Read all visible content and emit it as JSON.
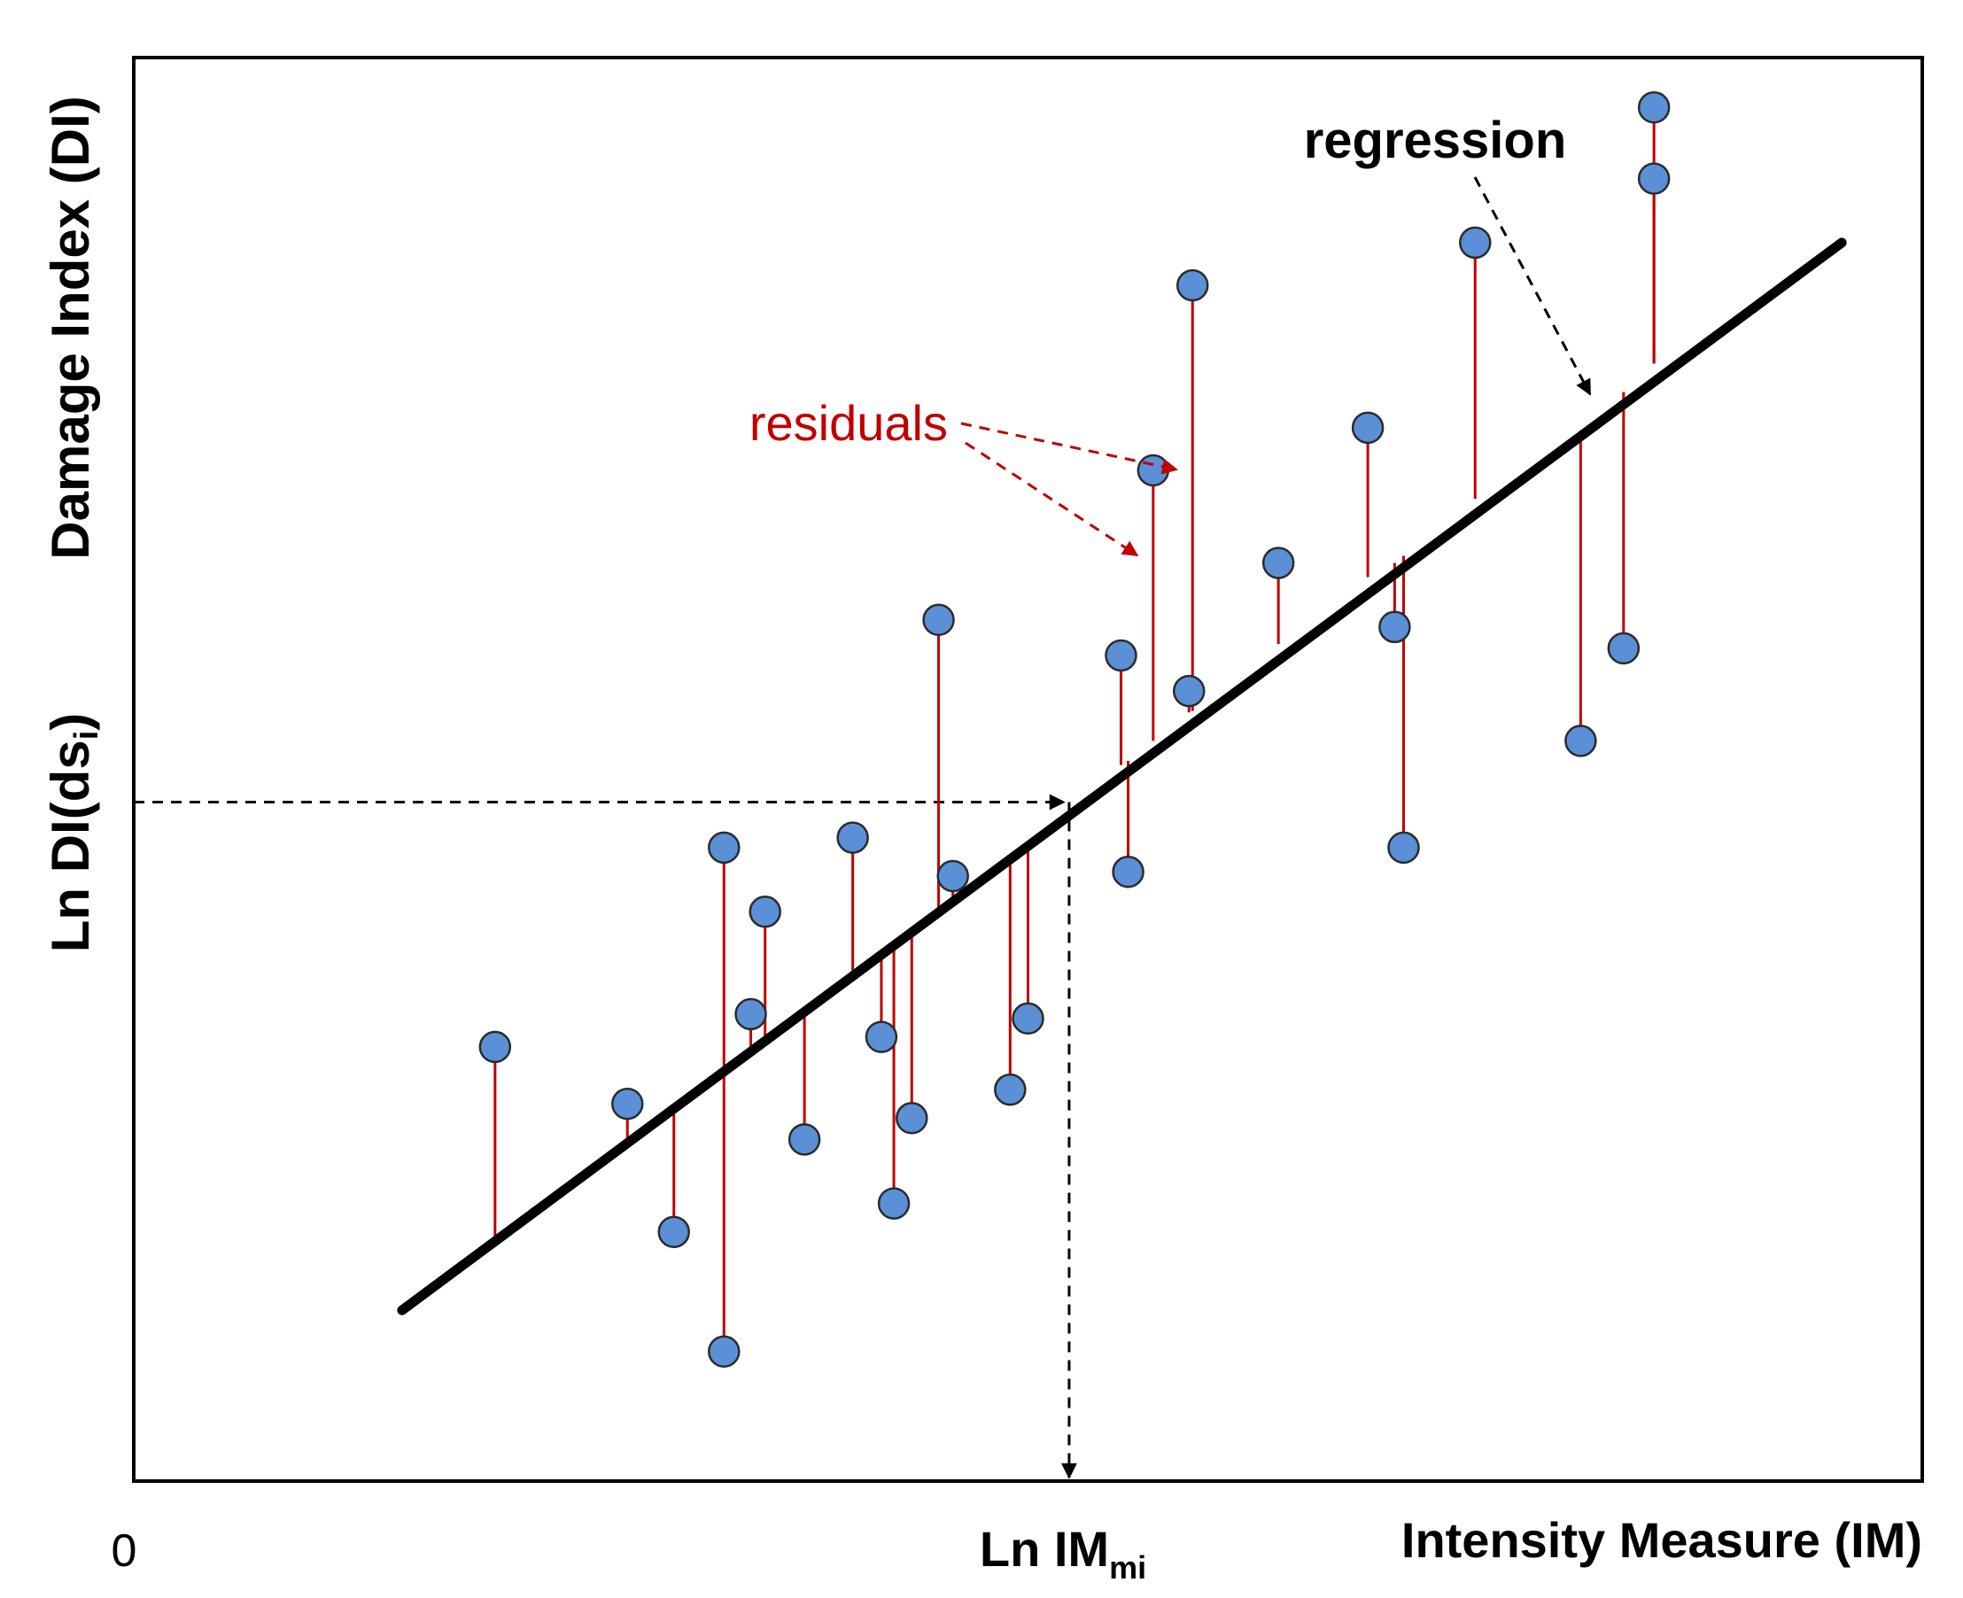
{
  "chart_data": {
    "type": "scatter",
    "title": "",
    "xlabel": "Intensity Measure (IM)",
    "ylabel": "Damage Index (DI)",
    "x_origin_label": "0",
    "y_marker_label": {
      "main": "Ln DI(ds",
      "sub": "i",
      "close": ")"
    },
    "x_marker_label": {
      "main": "Ln IM",
      "sub": "mi"
    },
    "xlim": [
      0,
      100
    ],
    "ylim": [
      0,
      100
    ],
    "grid": false,
    "legend": "none",
    "regression": {
      "x": [
        15,
        95.5
      ],
      "y": [
        12,
        87
      ]
    },
    "marker_point": {
      "x": 52.3,
      "y": 47.7
    },
    "points": [
      {
        "x": 20.2,
        "y": 30.5,
        "fit": 17.0
      },
      {
        "x": 27.6,
        "y": 26.5,
        "fit": 23.7
      },
      {
        "x": 30.2,
        "y": 17.5,
        "fit": 26.2
      },
      {
        "x": 33.0,
        "y": 44.5,
        "fit": 28.7
      },
      {
        "x": 33.0,
        "y": 9.1,
        "fit": 28.7
      },
      {
        "x": 34.5,
        "y": 32.8,
        "fit": 30.1
      },
      {
        "x": 35.3,
        "y": 40.0,
        "fit": 30.8
      },
      {
        "x": 37.5,
        "y": 24.0,
        "fit": 33.0
      },
      {
        "x": 40.2,
        "y": 45.2,
        "fit": 35.3
      },
      {
        "x": 41.8,
        "y": 31.2,
        "fit": 37.0
      },
      {
        "x": 42.5,
        "y": 19.5,
        "fit": 37.5
      },
      {
        "x": 43.5,
        "y": 25.5,
        "fit": 38.5
      },
      {
        "x": 45.0,
        "y": 60.5,
        "fit": 40.0
      },
      {
        "x": 45.8,
        "y": 42.5,
        "fit": 40.6
      },
      {
        "x": 49.0,
        "y": 27.5,
        "fit": 43.5
      },
      {
        "x": 50.0,
        "y": 32.5,
        "fit": 44.5
      },
      {
        "x": 55.2,
        "y": 58.0,
        "fit": 50.3
      },
      {
        "x": 55.6,
        "y": 42.8,
        "fit": 50.6
      },
      {
        "x": 57.0,
        "y": 71.0,
        "fit": 52.0
      },
      {
        "x": 59.0,
        "y": 55.5,
        "fit": 54.0
      },
      {
        "x": 59.2,
        "y": 84.0,
        "fit": 54.1
      },
      {
        "x": 64.0,
        "y": 64.5,
        "fit": 58.8
      },
      {
        "x": 69.0,
        "y": 74.0,
        "fit": 63.5
      },
      {
        "x": 70.5,
        "y": 60.0,
        "fit": 64.5
      },
      {
        "x": 71.0,
        "y": 44.5,
        "fit": 65.0
      },
      {
        "x": 75.0,
        "y": 87.0,
        "fit": 69.0
      },
      {
        "x": 80.9,
        "y": 52.0,
        "fit": 73.8
      },
      {
        "x": 83.3,
        "y": 58.5,
        "fit": 76.5
      },
      {
        "x": 85.0,
        "y": 91.5,
        "fit": 78.5
      },
      {
        "x": 85.0,
        "y": 96.5,
        "fit": 78.5
      }
    ],
    "annotations": {
      "residuals": "residuals",
      "regression": "regression"
    },
    "colors": {
      "point_fill": "#5b8fd6",
      "point_stroke": "#2b2b2b",
      "residual": "#c00000",
      "line": "#000000",
      "annotation_red": "#c00000"
    }
  }
}
